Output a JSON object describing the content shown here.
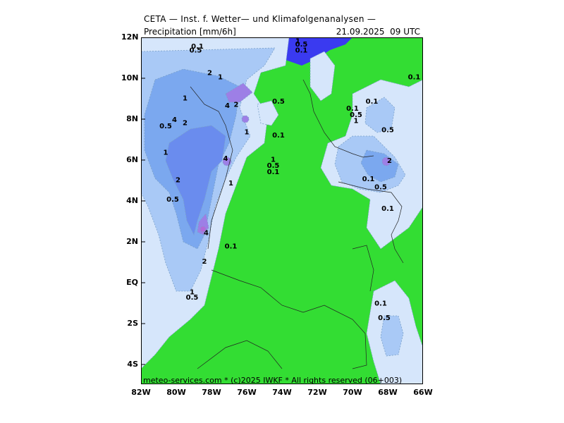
{
  "header": {
    "title": "CETA — Inst. f. Wetter— und Klimafolgenanalysen —",
    "variable": "Precipitation [mm/6h]",
    "valid_time": "21.09.2025  09 UTC"
  },
  "axes": {
    "lat_labels": [
      "12N",
      "10N",
      "8N",
      "6N",
      "4N",
      "2N",
      "EQ",
      "2S",
      "4S"
    ],
    "lon_labels": [
      "82W",
      "80W",
      "78W",
      "76W",
      "74W",
      "72W",
      "70W",
      "68W",
      "66W"
    ]
  },
  "footer": "meteo-services.com * (c)2025 IWKF * All rights reserved (06+003)",
  "colors": {
    "ocean": "#3a3af0",
    "dry_land": "#33dd33",
    "precip_0_1": "#d6e6fb",
    "precip_0_5": "#a9c9f6",
    "precip_1": "#7ba8ef",
    "precip_2": "#6a8cee",
    "precip_4": "#9d7fe6",
    "precip_8": "#b36ad8"
  },
  "contour_labels": [
    {
      "text": "0.1",
      "lon": -78.8,
      "lat": 11.45
    },
    {
      "text": "0.5",
      "lon": -78.9,
      "lat": 11.25
    },
    {
      "text": "2",
      "lon": -78.1,
      "lat": 10.15
    },
    {
      "text": "1",
      "lon": -77.5,
      "lat": 9.95
    },
    {
      "text": "1",
      "lon": -73.1,
      "lat": 11.7
    },
    {
      "text": "0.5",
      "lon": -72.9,
      "lat": 11.55
    },
    {
      "text": "0.1",
      "lon": -72.9,
      "lat": 11.25
    },
    {
      "text": "1",
      "lon": -79.5,
      "lat": 8.9
    },
    {
      "text": "4",
      "lon": -77.1,
      "lat": 8.55
    },
    {
      "text": "2",
      "lon": -76.6,
      "lat": 8.6
    },
    {
      "text": "0.5",
      "lon": -74.2,
      "lat": 8.75
    },
    {
      "text": "4",
      "lon": -80.1,
      "lat": 7.85
    },
    {
      "text": "2",
      "lon": -79.5,
      "lat": 7.7
    },
    {
      "text": "0.5",
      "lon": -80.6,
      "lat": 7.55
    },
    {
      "text": "1",
      "lon": -76.0,
      "lat": 7.25
    },
    {
      "text": "0.1",
      "lon": -74.2,
      "lat": 7.1
    },
    {
      "text": "1",
      "lon": -80.6,
      "lat": 6.25
    },
    {
      "text": "4",
      "lon": -77.2,
      "lat": 5.95
    },
    {
      "text": "1",
      "lon": -74.5,
      "lat": 5.9
    },
    {
      "text": "0.5",
      "lon": -74.5,
      "lat": 5.6
    },
    {
      "text": "0.1",
      "lon": -74.5,
      "lat": 5.3
    },
    {
      "text": "2",
      "lon": -79.9,
      "lat": 4.9
    },
    {
      "text": "1",
      "lon": -76.9,
      "lat": 4.75
    },
    {
      "text": "0.5",
      "lon": -80.2,
      "lat": 3.95
    },
    {
      "text": "4",
      "lon": -78.3,
      "lat": 2.3
    },
    {
      "text": "0.1",
      "lon": -76.9,
      "lat": 1.65
    },
    {
      "text": "2",
      "lon": -78.4,
      "lat": 0.9
    },
    {
      "text": "1",
      "lon": -79.1,
      "lat": -0.6
    },
    {
      "text": "0.5",
      "lon": -79.1,
      "lat": -0.85
    },
    {
      "text": "0.1",
      "lon": -70.0,
      "lat": 8.4
    },
    {
      "text": "0.5",
      "lon": -69.8,
      "lat": 8.1
    },
    {
      "text": "1",
      "lon": -69.8,
      "lat": 7.8
    },
    {
      "text": "0.1",
      "lon": -68.9,
      "lat": 8.75
    },
    {
      "text": "0.5",
      "lon": -68.0,
      "lat": 7.35
    },
    {
      "text": "2",
      "lon": -67.9,
      "lat": 5.85
    },
    {
      "text": "0.1",
      "lon": -69.1,
      "lat": 4.95
    },
    {
      "text": "0.5",
      "lon": -68.4,
      "lat": 4.55
    },
    {
      "text": "0.1",
      "lon": -68.0,
      "lat": 3.5
    },
    {
      "text": "0.1",
      "lon": -66.5,
      "lat": 9.95
    },
    {
      "text": "0.1",
      "lon": -68.4,
      "lat": -1.15
    },
    {
      "text": "0.5",
      "lon": -68.2,
      "lat": -1.85
    }
  ]
}
